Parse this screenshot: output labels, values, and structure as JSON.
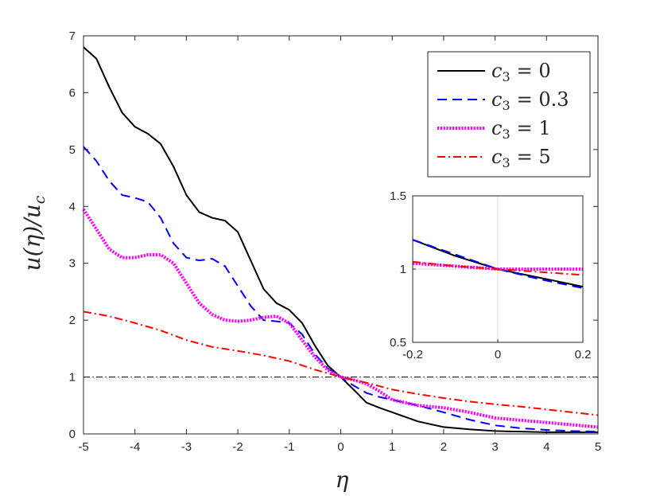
{
  "chart_data": {
    "type": "line",
    "xlabel": "η",
    "ylabel": "u(η)/u",
    "ylabel_sub": "c",
    "xlim": [
      -5,
      5
    ],
    "ylim": [
      0,
      7
    ],
    "x_ticks": [
      "-5",
      "-4",
      "-3",
      "-2",
      "-1",
      "0",
      "1",
      "2",
      "3",
      "4",
      "5"
    ],
    "y_ticks": [
      "0",
      "1",
      "2",
      "3",
      "4",
      "5",
      "6",
      "7"
    ],
    "reference_line": {
      "y": 1,
      "style": "dash-dot",
      "color": "#000000"
    },
    "legend_position": "top-right",
    "series": [
      {
        "name": "c3 = 0",
        "legend_symbol": "c",
        "legend_sub": "3",
        "legend_value": "= 0",
        "color": "#000000",
        "style": "solid",
        "x": [
          -5,
          -4.75,
          -4.5,
          -4.25,
          -4,
          -3.75,
          -3.5,
          -3.25,
          -3,
          -2.75,
          -2.5,
          -2.25,
          -2,
          -1.75,
          -1.5,
          -1.25,
          -1,
          -0.75,
          -0.5,
          -0.25,
          0,
          0.25,
          0.5,
          0.75,
          1,
          1.5,
          2,
          2.5,
          3,
          3.5,
          4,
          4.5,
          5
        ],
        "y": [
          6.8,
          6.6,
          6.1,
          5.65,
          5.4,
          5.28,
          5.1,
          4.7,
          4.2,
          3.9,
          3.8,
          3.75,
          3.55,
          3.05,
          2.55,
          2.3,
          2.18,
          1.95,
          1.55,
          1.2,
          1.0,
          0.78,
          0.55,
          0.46,
          0.38,
          0.22,
          0.12,
          0.08,
          0.05,
          0.04,
          0.03,
          0.03,
          0.03
        ]
      },
      {
        "name": "c3 = 0.3",
        "legend_symbol": "c",
        "legend_sub": "3",
        "legend_value": "= 0.3",
        "color": "#0000ff",
        "style": "dashed",
        "x": [
          -5,
          -4.75,
          -4.5,
          -4.25,
          -4,
          -3.75,
          -3.5,
          -3.25,
          -3,
          -2.75,
          -2.5,
          -2.25,
          -2,
          -1.75,
          -1.5,
          -1.25,
          -1,
          -0.75,
          -0.5,
          -0.25,
          0,
          0.25,
          0.5,
          0.75,
          1,
          1.5,
          2,
          2.5,
          3,
          3.5,
          4,
          4.5,
          5
        ],
        "y": [
          5.05,
          4.8,
          4.45,
          4.2,
          4.15,
          4.08,
          3.8,
          3.35,
          3.1,
          3.05,
          3.08,
          2.95,
          2.6,
          2.25,
          2.0,
          1.98,
          1.95,
          1.75,
          1.4,
          1.15,
          1.0,
          0.85,
          0.72,
          0.65,
          0.6,
          0.5,
          0.38,
          0.25,
          0.15,
          0.1,
          0.07,
          0.05,
          0.04
        ]
      },
      {
        "name": "c3 = 1",
        "legend_symbol": "c",
        "legend_sub": "3",
        "legend_value": "= 1",
        "color": "#ff00ff",
        "style": "dotted",
        "x": [
          -5,
          -4.75,
          -4.5,
          -4.25,
          -4,
          -3.75,
          -3.5,
          -3.25,
          -3,
          -2.75,
          -2.5,
          -2.25,
          -2,
          -1.75,
          -1.5,
          -1.25,
          -1,
          -0.75,
          -0.5,
          -0.25,
          0,
          0.25,
          0.5,
          0.75,
          1,
          1.5,
          2,
          2.5,
          3,
          3.5,
          4,
          4.5,
          5
        ],
        "y": [
          3.95,
          3.6,
          3.25,
          3.1,
          3.1,
          3.15,
          3.15,
          3.0,
          2.65,
          2.3,
          2.1,
          2.0,
          1.98,
          2.0,
          2.05,
          2.07,
          1.95,
          1.65,
          1.35,
          1.12,
          1.0,
          0.95,
          0.88,
          0.75,
          0.6,
          0.5,
          0.46,
          0.38,
          0.28,
          0.24,
          0.2,
          0.16,
          0.12
        ]
      },
      {
        "name": "c3 = 5",
        "legend_symbol": "c",
        "legend_sub": "3",
        "legend_value": "= 5",
        "color": "#ff0000",
        "style": "dash-dot",
        "x": [
          -5,
          -4.5,
          -4,
          -3.5,
          -3,
          -2.5,
          -2,
          -1.5,
          -1,
          -0.5,
          0,
          0.5,
          1,
          1.5,
          2,
          2.5,
          3,
          3.5,
          4,
          4.5,
          5
        ],
        "y": [
          2.15,
          2.07,
          1.95,
          1.82,
          1.65,
          1.53,
          1.46,
          1.38,
          1.28,
          1.13,
          1.0,
          0.9,
          0.78,
          0.7,
          0.63,
          0.57,
          0.52,
          0.48,
          0.43,
          0.38,
          0.33
        ]
      }
    ],
    "inset": {
      "xlim": [
        -0.2,
        0.2
      ],
      "ylim": [
        0.5,
        1.5
      ],
      "x_ticks": [
        "-0.2",
        "0",
        "0.2"
      ],
      "y_ticks": [
        "0.5",
        "1",
        "1.5"
      ],
      "grid_lines": {
        "x": 0,
        "y": 1
      },
      "series": [
        {
          "name": "c3 = 0",
          "color": "#000000",
          "style": "solid",
          "x": [
            -0.2,
            -0.1,
            0,
            0.1,
            0.2
          ],
          "y": [
            1.2,
            1.09,
            1.0,
            0.94,
            0.88
          ]
        },
        {
          "name": "c3 = 0.3",
          "color": "#0000ff",
          "style": "dashed",
          "x": [
            -0.2,
            -0.1,
            0,
            0.1,
            0.2
          ],
          "y": [
            1.2,
            1.1,
            1.0,
            0.93,
            0.87
          ]
        },
        {
          "name": "c3 = 1",
          "color": "#ff00ff",
          "style": "dotted",
          "x": [
            -0.2,
            -0.1,
            0,
            0.1,
            0.2
          ],
          "y": [
            1.04,
            1.02,
            1.0,
            1.0,
            1.0
          ]
        },
        {
          "name": "c3 = 5",
          "color": "#ff0000",
          "style": "dash-dot",
          "x": [
            -0.2,
            -0.1,
            0,
            0.1,
            0.2
          ],
          "y": [
            1.05,
            1.02,
            1.0,
            0.98,
            0.96
          ]
        }
      ]
    }
  }
}
